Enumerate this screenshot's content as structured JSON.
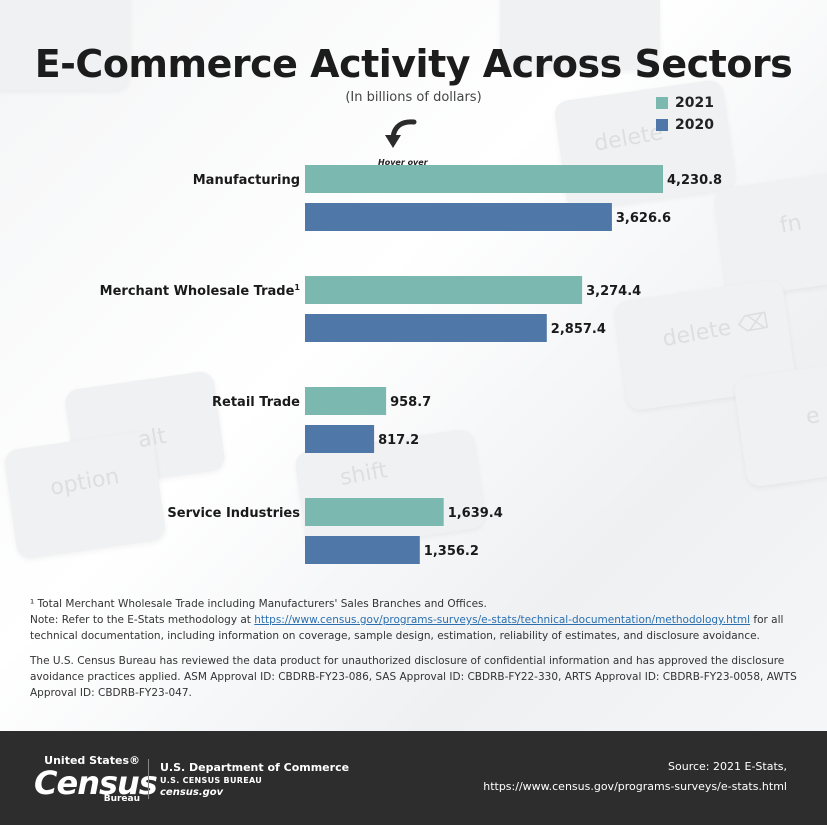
{
  "chart_data": {
    "type": "bar",
    "orientation": "horizontal",
    "title": "E-Commerce Activity Across Sectors",
    "subtitle": "(In billions of dollars)",
    "categories": [
      "Manufacturing",
      "Merchant Wholesale Trade",
      "Retail Trade",
      "Service Industries"
    ],
    "category_superscripts": [
      "",
      "1",
      "",
      ""
    ],
    "series": [
      {
        "name": "2021",
        "color": "#7ab8b0",
        "values": [
          4230.8,
          3274.4,
          958.7,
          1639.4
        ],
        "labels": [
          "4,230.8",
          "3,274.4",
          "958.7",
          "1,639.4"
        ]
      },
      {
        "name": "2020",
        "color": "#4f77a8",
        "values": [
          3626.6,
          2857.4,
          817.2,
          1356.2
        ],
        "labels": [
          "3,626.6",
          "2,857.4",
          "817.2",
          "1,356.2"
        ]
      }
    ],
    "xlim": [
      0,
      4230.8
    ],
    "grid": false,
    "legend_position": "top-right"
  },
  "hover_hint": "Hover over",
  "notes": {
    "footnote": "¹ Total Merchant Wholesale Trade including Manufacturers' Sales Branches and Offices.",
    "methodology_prefix": "Note: Refer to the E-Stats methodology at ",
    "methodology_link": "https://www.census.gov/programs-surveys/e-stats/technical-documentation/methodology.html",
    "methodology_suffix": " for all technical documentation, including information on coverage, sample design, estimation, reliability of estimates, and disclosure avoidance.",
    "disclosure": "The U.S. Census Bureau has reviewed the data product for unauthorized disclosure of confidential information and has approved the disclosure avoidance practices applied. ASM Approval ID: CBDRB-FY23-086, SAS Approval ID: CBDRB-FY22-330, ARTS Approval ID: CBDRB-FY23-0058, AWTS Approval ID: CBDRB-FY23-047."
  },
  "footer": {
    "logo_top": "United States®",
    "logo_main": "Census",
    "logo_bottom": "Bureau",
    "department": "U.S. Department of Commerce",
    "bureau": "U.S. CENSUS BUREAU",
    "site": "census.gov",
    "source_line1": "Source: 2021 E-Stats,",
    "source_line2": "https://www.census.gov/programs-surveys/e-stats.html"
  },
  "background": {
    "keys": [
      "delete",
      "fn",
      "delete ⌫",
      "alt",
      "option",
      "shift",
      "e"
    ]
  }
}
